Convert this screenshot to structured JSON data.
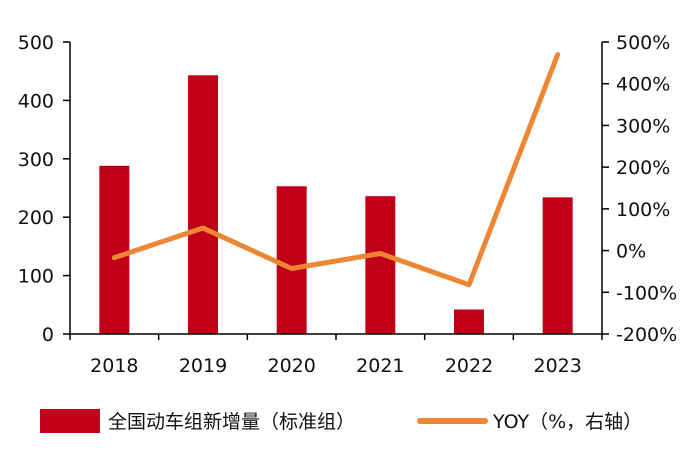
{
  "chart_data": {
    "type": "bar+line",
    "categories": [
      "2018",
      "2019",
      "2020",
      "2021",
      "2022",
      "2023"
    ],
    "series": [
      {
        "name": "全国动车组新增量（标准组）",
        "type": "bar",
        "axis": "left",
        "color": "#c00018",
        "values": [
          288,
          443,
          253,
          236,
          42,
          234
        ]
      },
      {
        "name": "YOY（%，右轴）",
        "type": "line",
        "axis": "right",
        "color": "#ee8733",
        "values": [
          -17,
          54,
          -43,
          -7,
          -82,
          470
        ]
      }
    ],
    "y_left": {
      "ylim": [
        0,
        500
      ],
      "ticks": [
        "0",
        "100",
        "200",
        "300",
        "400",
        "500"
      ]
    },
    "y_right": {
      "ylim": [
        -200,
        500
      ],
      "ticks": [
        "-200%",
        "-100%",
        "0%",
        "100%",
        "200%",
        "300%",
        "400%",
        "500%"
      ]
    },
    "legend": "bottom",
    "grid": false
  }
}
